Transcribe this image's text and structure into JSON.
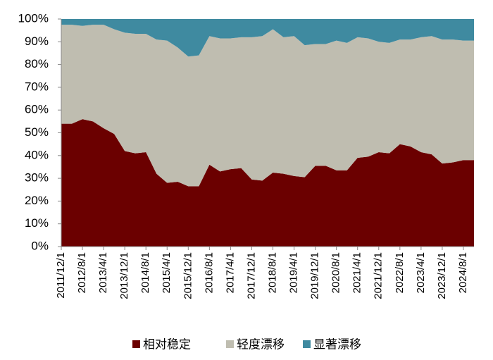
{
  "chart_data": {
    "type": "stacked_area",
    "categories": [
      "2011/12/1",
      null,
      "2012/8/1",
      null,
      "2013/4/1",
      null,
      "2013/12/1",
      null,
      "2014/8/1",
      null,
      "2015/4/1",
      null,
      "2015/12/1",
      null,
      "2016/8/1",
      null,
      "2017/4/1",
      null,
      "2017/12/1",
      null,
      "2018/8/1",
      null,
      "2019/4/1",
      null,
      "2019/12/1",
      null,
      "2020/8/1",
      null,
      "2021/4/1",
      null,
      "2021/12/1",
      null,
      "2022/8/1",
      null,
      "2023/4/1",
      null,
      "2023/12/1",
      null,
      "2024/8/1",
      null
    ],
    "series": [
      {
        "name": "相对稳定",
        "color": "#6b0000",
        "values": [
          54,
          54,
          56,
          55,
          52,
          49.5,
          42,
          41,
          41.5,
          32,
          28,
          28.5,
          26.5,
          26.5,
          36,
          33,
          34,
          34.5,
          29.5,
          29,
          32.5,
          32,
          31,
          30.5,
          35.5,
          35.5,
          33.5,
          33.5,
          39,
          39.5,
          41.5,
          41,
          45,
          44,
          41.5,
          40.5,
          36.5,
          37,
          38,
          38
        ]
      },
      {
        "name": "轻度漂移",
        "color": "#bfbdb0",
        "values": [
          43.5,
          43.5,
          41,
          42.5,
          45.5,
          46,
          52,
          52.5,
          52,
          59,
          62.5,
          59,
          57,
          57.5,
          56.5,
          58.5,
          57.5,
          57.5,
          62.5,
          63.5,
          63,
          60,
          61.5,
          58,
          53.5,
          53.5,
          57,
          56,
          53,
          52,
          48.5,
          48.5,
          46,
          47,
          50.5,
          52,
          54.5,
          54,
          52.5,
          52.5
        ]
      },
      {
        "name": "显著漂移",
        "color": "#3f8aa0",
        "values": [
          2.5,
          2.5,
          3,
          2.5,
          2.5,
          4.5,
          6,
          6.5,
          6.5,
          9,
          9.5,
          12.5,
          16.5,
          16,
          7.5,
          8.5,
          8.5,
          8,
          8,
          7.5,
          4.5,
          8,
          7.5,
          11.5,
          11,
          11,
          9.5,
          10.5,
          8,
          8.5,
          10,
          10.5,
          9,
          9,
          8,
          7.5,
          9,
          9,
          9.5,
          9.5
        ]
      }
    ],
    "ylim": [
      0,
      100
    ],
    "yticks": [
      {
        "value": 0,
        "label": "0%"
      },
      {
        "value": 10,
        "label": "10%"
      },
      {
        "value": 20,
        "label": "20%"
      },
      {
        "value": 30,
        "label": "30%"
      },
      {
        "value": 40,
        "label": "40%"
      },
      {
        "value": 50,
        "label": "50%"
      },
      {
        "value": 60,
        "label": "60%"
      },
      {
        "value": 70,
        "label": "70%"
      },
      {
        "value": 80,
        "label": "80%"
      },
      {
        "value": 90,
        "label": "90%"
      },
      {
        "value": 100,
        "label": "100%"
      }
    ],
    "grid": false,
    "legend": "bottom"
  }
}
